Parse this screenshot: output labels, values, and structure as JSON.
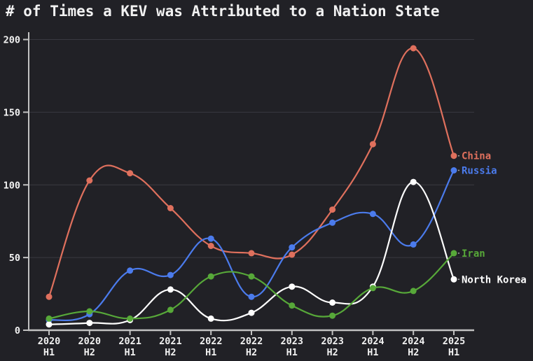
{
  "title": "# of Times a KEV was Attributed to a Nation State",
  "colors": {
    "background": "#212126",
    "grid": "#3a3a41",
    "axis": "#c2c2c2",
    "text": "#f1f1f1",
    "china": "#df705d",
    "russia": "#4b7bec",
    "iran": "#57a839",
    "north_korea": "#ffffff"
  },
  "chart_data": {
    "type": "line",
    "title": "# of Times a KEV was Attributed to a Nation State",
    "categories": [
      "2020 H1",
      "2020 H2",
      "2021 H1",
      "2021 H2",
      "2022 H1",
      "2022 H2",
      "2023 H1",
      "2023 H2",
      "2024 H1",
      "2024 H2",
      "2025 H1"
    ],
    "series": [
      {
        "name": "China",
        "color": "#df705d",
        "values": [
          23,
          103,
          108,
          84,
          58,
          53,
          52,
          83,
          128,
          194,
          120
        ]
      },
      {
        "name": "Russia",
        "color": "#4b7bec",
        "values": [
          7,
          11,
          41,
          38,
          63,
          23,
          57,
          74,
          80,
          59,
          110
        ]
      },
      {
        "name": "North Korea",
        "color": "#ffffff",
        "values": [
          4,
          5,
          7,
          28,
          8,
          12,
          30,
          19,
          30,
          102,
          35
        ]
      },
      {
        "name": "Iran",
        "color": "#57a839",
        "values": [
          8,
          13,
          8,
          14,
          37,
          37,
          17,
          10,
          29,
          27,
          53
        ]
      }
    ],
    "label_order_right": [
      "China",
      "Russia",
      "Iran",
      "North Korea"
    ],
    "xlabel": "",
    "ylabel": "",
    "ylim": [
      0,
      200
    ],
    "yticks": [
      0,
      50,
      100,
      150,
      200
    ],
    "grid": "horizontal",
    "legend_position": "end-of-line-labels"
  }
}
